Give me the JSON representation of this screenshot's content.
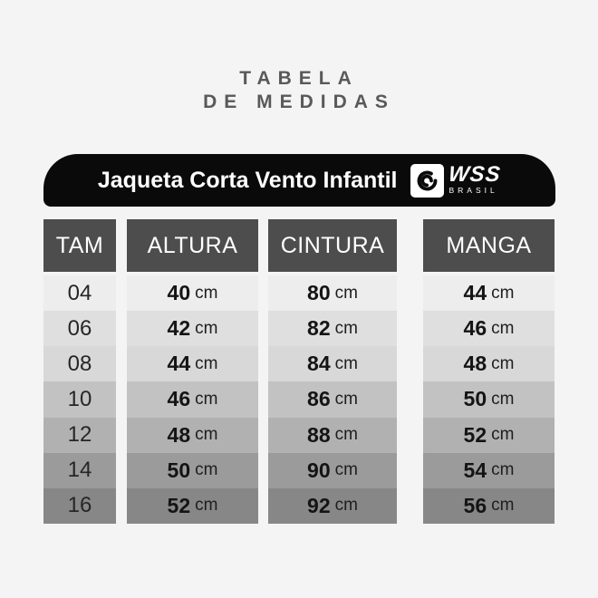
{
  "title": {
    "line1": "TABELA",
    "line2": "DE MEDIDAS"
  },
  "banner": {
    "product": "Jaqueta Corta Vento Infantil",
    "brand": "WSS",
    "brand_sub": "BRASIL",
    "logo_icon": "wave-swirl-icon"
  },
  "chart_data": {
    "type": "table",
    "title": "TABELA DE MEDIDAS",
    "subtitle": "Jaqueta Corta Vento Infantil",
    "columns": [
      "TAM",
      "ALTURA",
      "CINTURA",
      "MANGA"
    ],
    "unit": "cm",
    "rows": [
      {
        "tam": "04",
        "altura": "40",
        "cintura": "80",
        "manga": "44"
      },
      {
        "tam": "06",
        "altura": "42",
        "cintura": "82",
        "manga": "46"
      },
      {
        "tam": "08",
        "altura": "44",
        "cintura": "84",
        "manga": "48"
      },
      {
        "tam": "10",
        "altura": "46",
        "cintura": "86",
        "manga": "50"
      },
      {
        "tam": "12",
        "altura": "48",
        "cintura": "88",
        "manga": "52"
      },
      {
        "tam": "14",
        "altura": "50",
        "cintura": "90",
        "manga": "54"
      },
      {
        "tam": "16",
        "altura": "52",
        "cintura": "92",
        "manga": "56"
      }
    ]
  },
  "colors": {
    "page_bg": "#f4f4f5",
    "banner_bg": "#0a0a0a",
    "header_bg": "#4d4d4d",
    "header_text": "#ffffff",
    "title_text": "#595959",
    "value_text": "#141414",
    "row_shades": [
      "#ededed",
      "#dfdfdf",
      "#d8d8d8",
      "#c2c2c2",
      "#b1b1b1",
      "#9b9b9b",
      "#878787"
    ]
  }
}
